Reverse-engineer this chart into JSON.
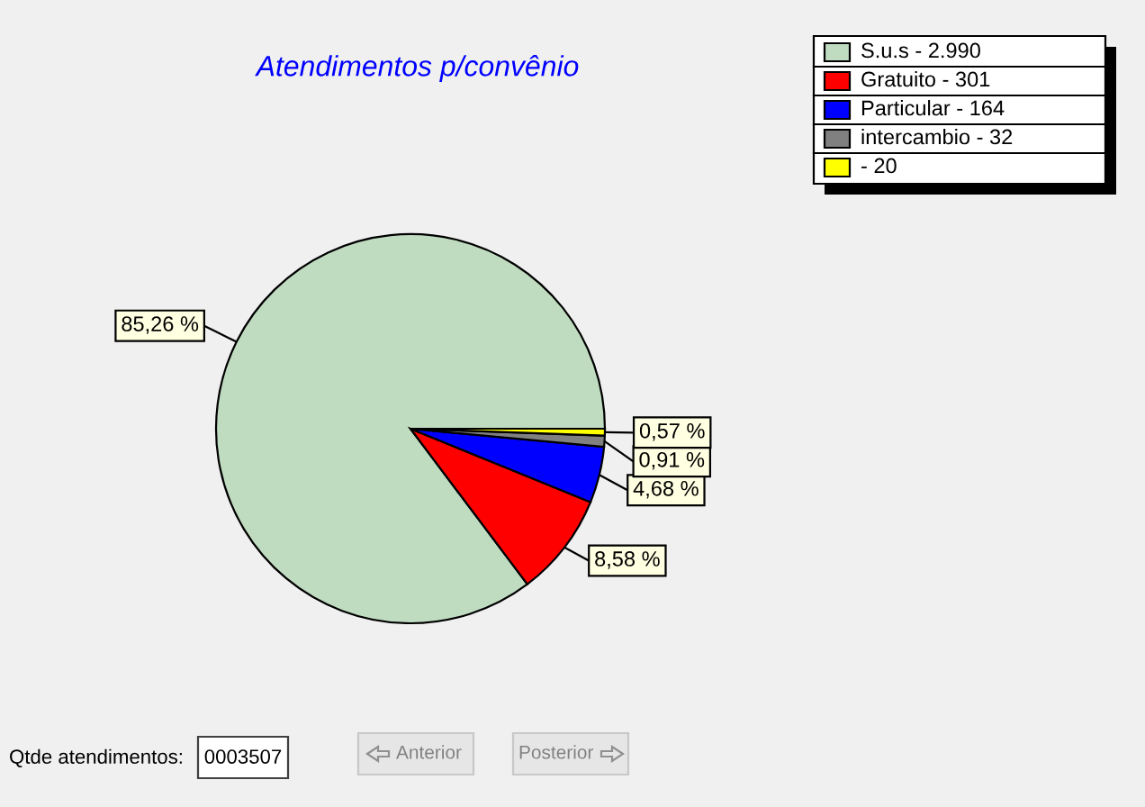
{
  "chart_data": {
    "type": "pie",
    "title": "Atendimentos p/convênio",
    "categories": [
      "S.u.s - 2.990",
      "Gratuito - 301",
      "Particular - 164",
      "intercambio - 32",
      "- 20"
    ],
    "values": [
      85.26,
      8.58,
      4.68,
      0.91,
      0.57
    ],
    "colors": [
      "#c0dcc0",
      "#ff0000",
      "#0000ff",
      "#808080",
      "#ffff00"
    ],
    "value_labels": [
      "85,26 %",
      "8,58 %",
      "4,68 %",
      "0,91 %",
      "0,57 %"
    ],
    "legend": "top right",
    "annotations": [
      "Qtde atendimentos:",
      "0003507",
      "Anterior",
      "Posterior"
    ]
  }
}
